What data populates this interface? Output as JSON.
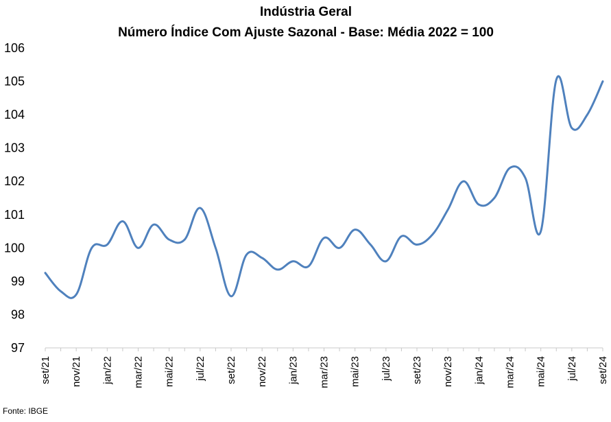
{
  "chart_data": {
    "type": "line",
    "title": "Indústria Geral",
    "subtitle": "Número Índice Com Ajuste Sazonal - Base: Média 2022 = 100",
    "xlabel": "",
    "ylabel": "",
    "ylim": [
      97,
      106
    ],
    "yticks": [
      97,
      98,
      99,
      100,
      101,
      102,
      103,
      104,
      105,
      106
    ],
    "grid": false,
    "legend": "none",
    "x": [
      "set/21",
      "out/21",
      "nov/21",
      "dez/21",
      "jan/22",
      "fev/22",
      "mar/22",
      "abr/22",
      "mai/22",
      "jun/22",
      "jul/22",
      "ago/22",
      "set/22",
      "out/22",
      "nov/22",
      "dez/22",
      "jan/23",
      "fev/23",
      "mar/23",
      "abr/23",
      "mai/23",
      "jun/23",
      "jul/23",
      "ago/23",
      "set/23",
      "out/23",
      "nov/23",
      "dez/23",
      "jan/24",
      "fev/24",
      "mar/24",
      "abr/24",
      "mai/24",
      "jun/24",
      "jul/24",
      "ago/24",
      "set/24"
    ],
    "xtick_labels": [
      "set/21",
      "nov/21",
      "jan/22",
      "mar/22",
      "mai/22",
      "jul/22",
      "set/22",
      "nov/22",
      "jan/23",
      "mar/23",
      "mai/23",
      "jul/23",
      "set/23",
      "nov/23",
      "jan/24",
      "mar/24",
      "mai/24",
      "jul/24",
      "set/24"
    ],
    "series": [
      {
        "color": "#4f81bd",
        "values": [
          99.25,
          98.7,
          98.6,
          100.0,
          100.1,
          100.8,
          100.0,
          100.7,
          100.25,
          100.25,
          101.2,
          100.0,
          98.55,
          99.8,
          99.7,
          99.35,
          99.6,
          99.45,
          100.3,
          100.0,
          100.55,
          100.1,
          99.6,
          100.35,
          100.1,
          100.4,
          101.15,
          102.0,
          101.3,
          101.5,
          102.4,
          102.1,
          100.5,
          105.05,
          103.6,
          104.0,
          105.0
        ]
      }
    ]
  },
  "source": "Fonte: IBGE"
}
